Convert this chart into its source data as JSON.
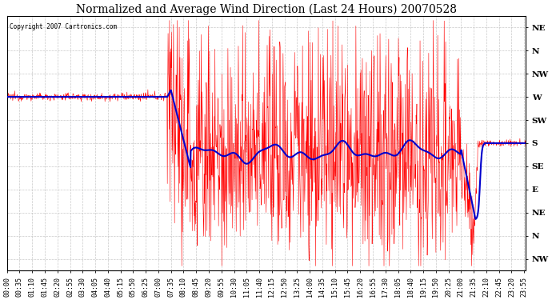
{
  "title": "Normalized and Average Wind Direction (Last 24 Hours) 20070528",
  "copyright_text": "Copyright 2007 Cartronics.com",
  "background_color": "#ffffff",
  "plot_bg_color": "#ffffff",
  "y_labels": [
    "NE",
    "N",
    "NW",
    "W",
    "SW",
    "S",
    "SE",
    "E",
    "NE",
    "N",
    "NW"
  ],
  "y_values": [
    11,
    10,
    9,
    8,
    7,
    6,
    5,
    4,
    3,
    2,
    1
  ],
  "y_min": 0.5,
  "y_max": 11.5,
  "grid_color": "#bbbbbb",
  "red_line_color": "#ff0000",
  "blue_line_color": "#0000cc",
  "title_fontsize": 10,
  "tick_labelsize": 6,
  "x_tick_labels": [
    "00:00",
    "00:35",
    "01:10",
    "01:45",
    "02:20",
    "02:55",
    "03:30",
    "04:05",
    "04:40",
    "05:15",
    "05:50",
    "06:25",
    "07:00",
    "07:35",
    "08:10",
    "08:45",
    "09:20",
    "09:55",
    "10:30",
    "11:05",
    "11:40",
    "12:15",
    "12:50",
    "13:25",
    "14:00",
    "14:35",
    "15:10",
    "15:45",
    "16:20",
    "16:55",
    "17:30",
    "18:05",
    "18:40",
    "19:15",
    "19:50",
    "20:25",
    "21:00",
    "21:35",
    "22:10",
    "22:45",
    "23:20",
    "23:55"
  ]
}
